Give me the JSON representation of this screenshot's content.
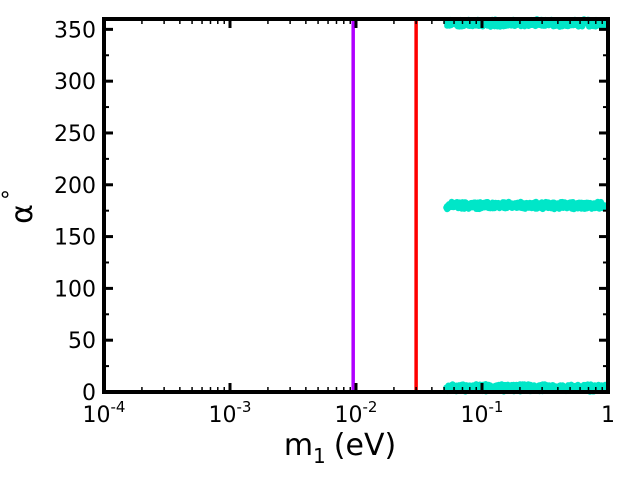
{
  "chart_data": {
    "type": "scatter",
    "title": "",
    "xlabel": "m",
    "xlabel_subscript": "1",
    "xlabel_unit": "(eV)",
    "ylabel": "α",
    "ylabel_superscript": "°",
    "xscale": "log",
    "xlim": [
      0.0001,
      1
    ],
    "ylim": [
      0,
      360
    ],
    "grid": false,
    "x_ticks": [
      {
        "value": 0.0001,
        "base": "10",
        "exp": "-4"
      },
      {
        "value": 0.001,
        "base": "10",
        "exp": "-3"
      },
      {
        "value": 0.01,
        "base": "10",
        "exp": "-2"
      },
      {
        "value": 0.1,
        "base": "10",
        "exp": "-1"
      },
      {
        "value": 1,
        "base": "1",
        "exp": ""
      }
    ],
    "y_ticks": [
      0,
      50,
      100,
      150,
      200,
      250,
      300,
      350
    ],
    "vertical_lines": [
      {
        "x": 0.0095,
        "color": "#b000ff"
      },
      {
        "x": 0.03,
        "color": "#ff0000"
      }
    ],
    "series": [
      {
        "color": "#00e6c8",
        "bands": [
          {
            "x_start": 0.052,
            "x_end": 0.95,
            "y_center": 356,
            "y_spread": 4
          },
          {
            "x_start": 0.052,
            "x_end": 0.95,
            "y_center": 180,
            "y_spread": 4
          },
          {
            "x_start": 0.052,
            "x_end": 0.95,
            "y_center": 4,
            "y_spread": 4
          }
        ]
      }
    ]
  }
}
